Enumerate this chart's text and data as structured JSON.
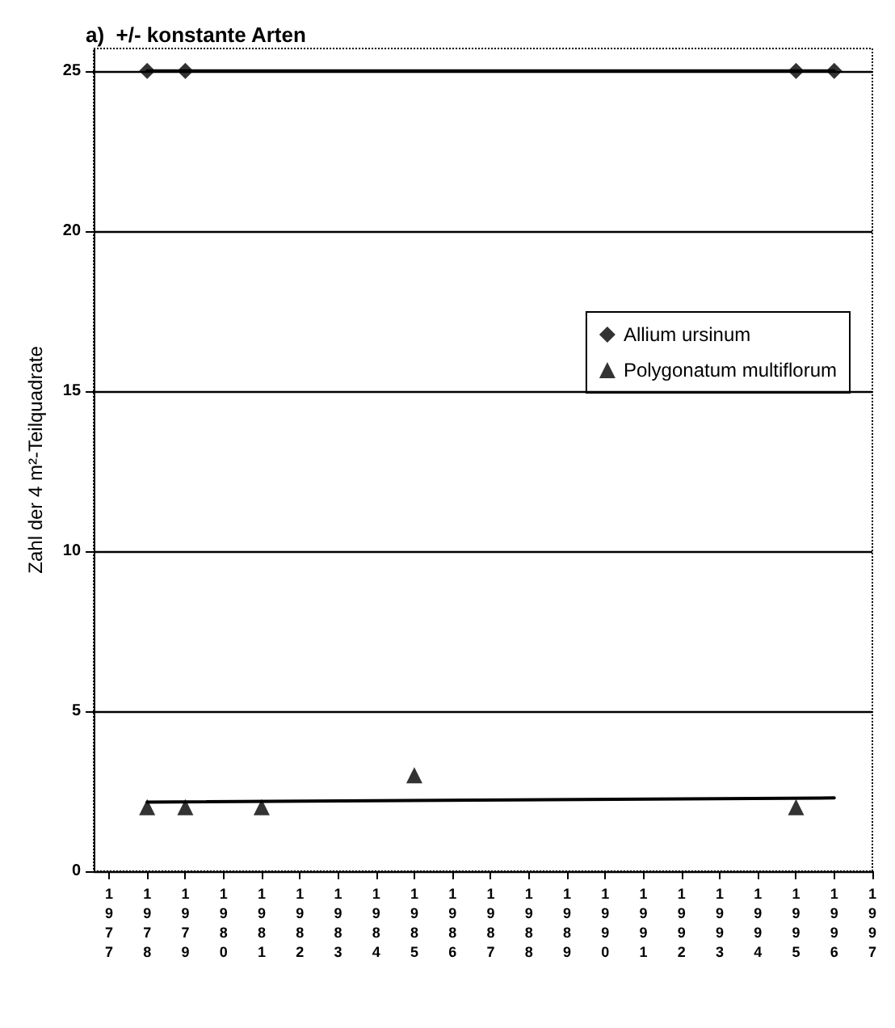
{
  "chart_data": {
    "type": "scatter",
    "title": "a)  +/- konstante Arten",
    "ylabel": "Zahl der 4 m²-Teilquadrate",
    "xlim": [
      1976.6,
      1997
    ],
    "xticks": [
      1977,
      1978,
      1979,
      1980,
      1981,
      1982,
      1983,
      1984,
      1985,
      1986,
      1987,
      1988,
      1989,
      1990,
      1991,
      1992,
      1993,
      1994,
      1995,
      1996,
      1997
    ],
    "ylim": [
      0,
      25.7
    ],
    "yticks": [
      0,
      5,
      10,
      15,
      20,
      25
    ],
    "grid": "y",
    "legend": "right",
    "series": [
      {
        "name": "Allium ursinum",
        "color": "#000000",
        "marker": "diamond",
        "x": [
          1978,
          1979,
          1995,
          1996
        ],
        "values": [
          25,
          25,
          25,
          25
        ]
      },
      {
        "name": "Polygonatum multiflorum",
        "color": "#000000",
        "marker": "triangle",
        "x": [
          1978,
          1979,
          1981,
          1985,
          1995
        ],
        "values": [
          2,
          2,
          2,
          3,
          2
        ]
      },
      {
        "type": "line",
        "color": "#000000",
        "marker": "none",
        "line_style": "solid",
        "x": [
          1978,
          1996
        ],
        "values": [
          25,
          25
        ]
      },
      {
        "type": "line",
        "color": "#000000",
        "marker": "none",
        "line_style": "solid",
        "x": [
          1978,
          1996
        ],
        "values": [
          2.16,
          2.29
        ]
      }
    ]
  }
}
